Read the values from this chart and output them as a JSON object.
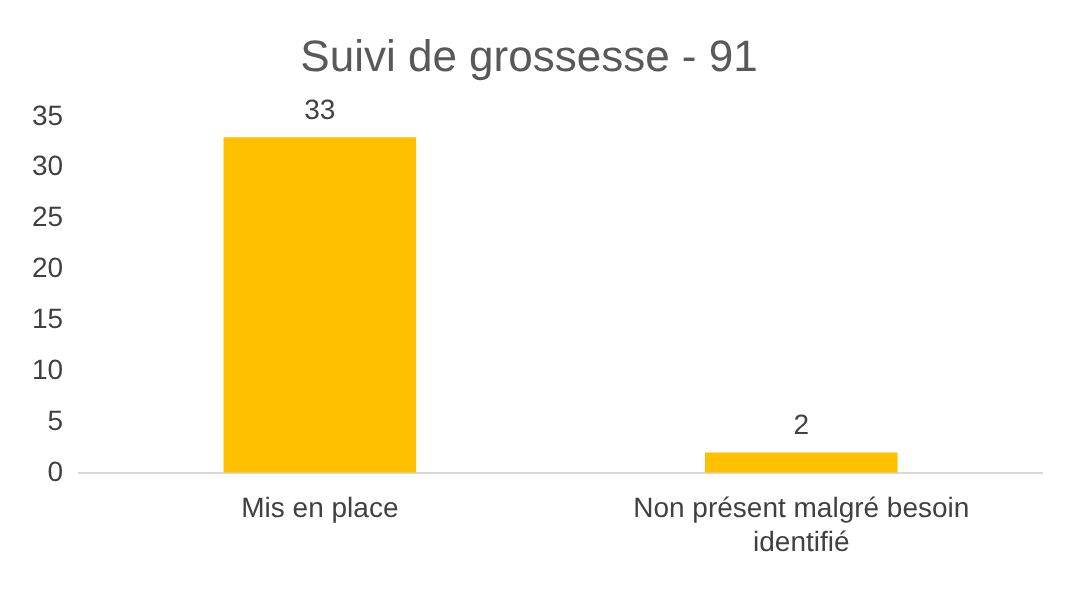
{
  "chart_data": {
    "type": "bar",
    "title": "Suivi de grossesse - 91",
    "categories": [
      "Mis en place",
      "Non présent malgré besoin identifié"
    ],
    "values": [
      33,
      2
    ],
    "color": "#ffc000",
    "ylim": [
      0,
      35
    ],
    "yticks": [
      0,
      5,
      10,
      15,
      20,
      25,
      30,
      35
    ],
    "grid": false,
    "data_labels": true,
    "legend": false
  }
}
